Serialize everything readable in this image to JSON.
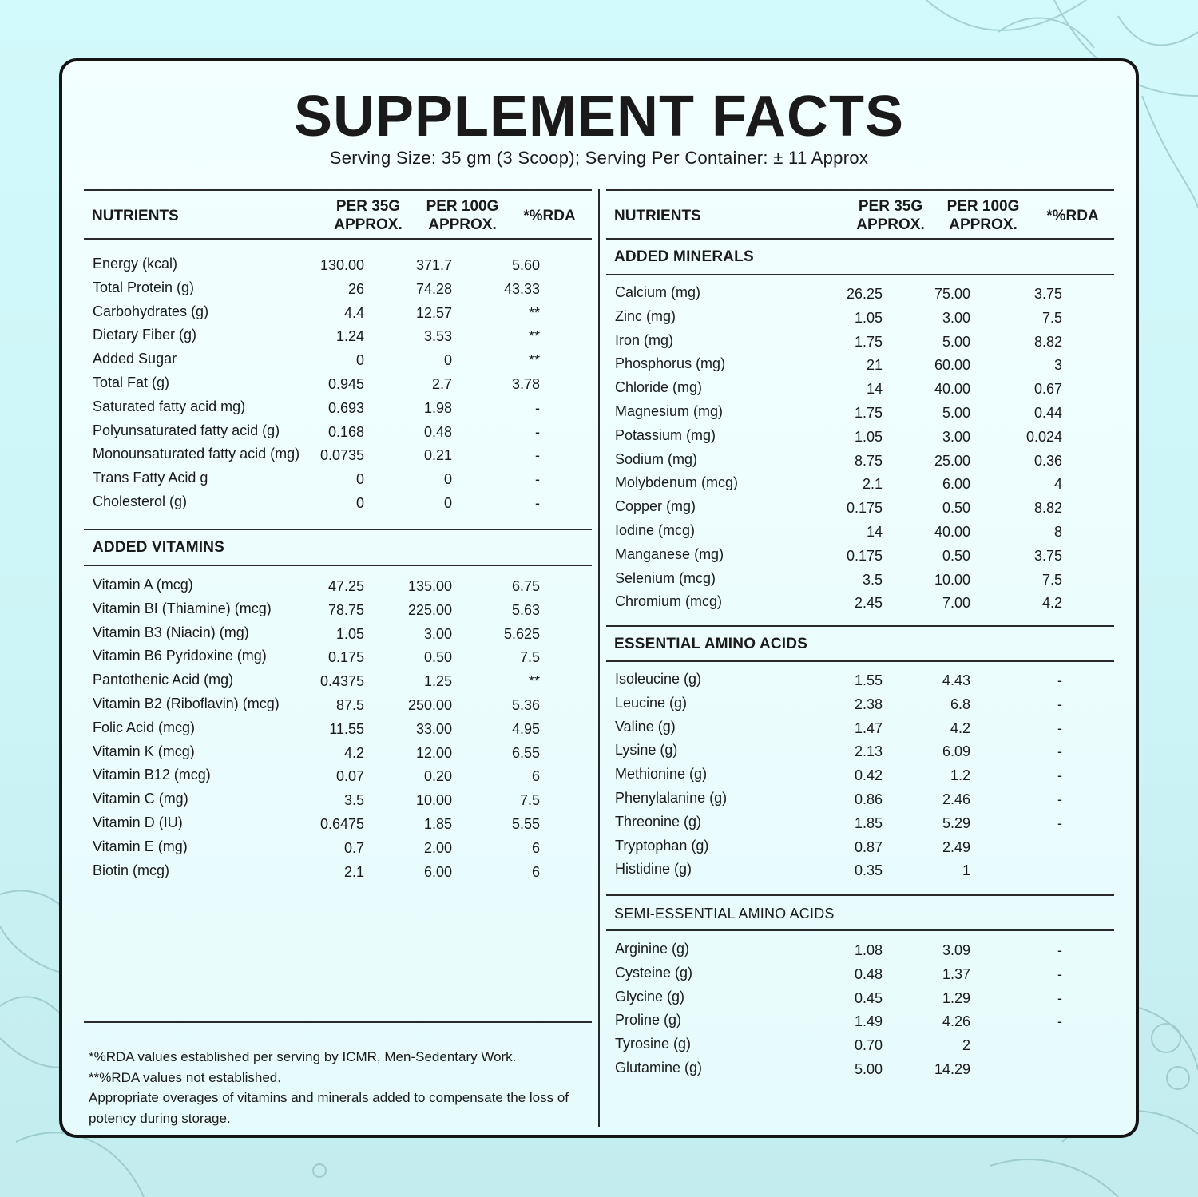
{
  "title": "SUPPLEMENT FACTS",
  "subtitle": "Serving Size: 35 gm (3 Scoop); Serving Per Container: ± 11 Approx",
  "headers": {
    "nutrients": "NUTRIENTS",
    "per35_line1": "PER 35G",
    "per35_line2": "APPROX.",
    "per100_line1": "PER 100G",
    "per100_line2": "APPROX.",
    "rda": "*%RDA"
  },
  "sections": {
    "vitamins": "ADDED VITAMINS",
    "minerals": "ADDED MINERALS",
    "essential": "ESSENTIAL AMINO ACIDS",
    "semi": "SEMI-ESSENTIAL AMINO ACIDS"
  },
  "nutrients": [
    {
      "name": "Energy (kcal)",
      "per35": "130.00",
      "per100": "371.7",
      "rda": "5.60"
    },
    {
      "name": "Total Protein (g)",
      "per35": "26",
      "per100": "74.28",
      "rda": "43.33"
    },
    {
      "name": "Carbohydrates (g)",
      "per35": "4.4",
      "per100": "12.57",
      "rda": "**"
    },
    {
      "name": "Dietary Fiber (g)",
      "per35": "1.24",
      "per100": "3.53",
      "rda": "**"
    },
    {
      "name": "Added Sugar",
      "per35": "0",
      "per100": "0",
      "rda": "**"
    },
    {
      "name": "Total Fat (g)",
      "per35": "0.945",
      "per100": "2.7",
      "rda": "3.78"
    },
    {
      "name": "Saturated fatty acid mg)",
      "per35": "0.693",
      "per100": "1.98",
      "rda": "-"
    },
    {
      "name": "Polyunsaturated fatty acid (g)",
      "per35": "0.168",
      "per100": "0.48",
      "rda": "-"
    },
    {
      "name": "Monounsaturated fatty acid (mg)",
      "per35": "0.0735",
      "per100": "0.21",
      "rda": "-"
    },
    {
      "name": "Trans Fatty Acid g",
      "per35": "0",
      "per100": "0",
      "rda": "-"
    },
    {
      "name": "Cholesterol (g)",
      "per35": "0",
      "per100": "0",
      "rda": "-"
    }
  ],
  "vitamins": [
    {
      "name": "Vitamin A (mcg)",
      "per35": "47.25",
      "per100": "135.00",
      "rda": "6.75"
    },
    {
      "name": "Vitamin BI (Thiamine) (mcg)",
      "per35": "78.75",
      "per100": "225.00",
      "rda": "5.63"
    },
    {
      "name": "Vitamin B3 (Niacin) (mg)",
      "per35": "1.05",
      "per100": "3.00",
      "rda": "5.625"
    },
    {
      "name": "Vitamin B6 Pyridoxine (mg)",
      "per35": "0.175",
      "per100": "0.50",
      "rda": "7.5"
    },
    {
      "name": "Pantothenic Acid (mg)",
      "per35": "0.4375",
      "per100": "1.25",
      "rda": "**"
    },
    {
      "name": "Vitamin B2 (Riboflavin) (mcg)",
      "per35": "87.5",
      "per100": "250.00",
      "rda": "5.36"
    },
    {
      "name": "Folic Acid (mcg)",
      "per35": "11.55",
      "per100": "33.00",
      "rda": "4.95"
    },
    {
      "name": "Vitamin K (mcg)",
      "per35": "4.2",
      "per100": "12.00",
      "rda": "6.55"
    },
    {
      "name": "Vitamin B12 (mcg)",
      "per35": "0.07",
      "per100": "0.20",
      "rda": "6"
    },
    {
      "name": "Vitamin C (mg)",
      "per35": "3.5",
      "per100": "10.00",
      "rda": "7.5"
    },
    {
      "name": "Vitamin D (IU)",
      "per35": "0.6475",
      "per100": "1.85",
      "rda": "5.55"
    },
    {
      "name": "Vitamin E (mg)",
      "per35": "0.7",
      "per100": "2.00",
      "rda": "6"
    },
    {
      "name": "Biotin (mcg)",
      "per35": "2.1",
      "per100": "6.00",
      "rda": "6"
    }
  ],
  "minerals": [
    {
      "name": "Calcium (mg)",
      "per35": "26.25",
      "per100": "75.00",
      "rda": "3.75"
    },
    {
      "name": "Zinc (mg)",
      "per35": "1.05",
      "per100": "3.00",
      "rda": "7.5"
    },
    {
      "name": "Iron (mg)",
      "per35": "1.75",
      "per100": "5.00",
      "rda": "8.82"
    },
    {
      "name": "Phosphorus (mg)",
      "per35": "21",
      "per100": "60.00",
      "rda": "3"
    },
    {
      "name": "Chloride (mg)",
      "per35": "14",
      "per100": "40.00",
      "rda": "0.67"
    },
    {
      "name": "Magnesium (mg)",
      "per35": "1.75",
      "per100": "5.00",
      "rda": "0.44"
    },
    {
      "name": "Potassium (mg)",
      "per35": "1.05",
      "per100": "3.00",
      "rda": "0.024"
    },
    {
      "name": "Sodium (mg)",
      "per35": "8.75",
      "per100": "25.00",
      "rda": "0.36"
    },
    {
      "name": "Molybdenum (mcg)",
      "per35": "2.1",
      "per100": "6.00",
      "rda": "4"
    },
    {
      "name": "Copper (mg)",
      "per35": "0.175",
      "per100": "0.50",
      "rda": "8.82"
    },
    {
      "name": "Iodine (mcg)",
      "per35": "14",
      "per100": "40.00",
      "rda": "8"
    },
    {
      "name": "Manganese (mg)",
      "per35": "0.175",
      "per100": "0.50",
      "rda": "3.75"
    },
    {
      "name": "Selenium (mcg)",
      "per35": "3.5",
      "per100": "10.00",
      "rda": "7.5"
    },
    {
      "name": "Chromium (mcg)",
      "per35": "2.45",
      "per100": "7.00",
      "rda": "4.2"
    }
  ],
  "essential_amino": [
    {
      "name": "Isoleucine (g)",
      "per35": "1.55",
      "per100": "4.43",
      "rda": "-"
    },
    {
      "name": "Leucine (g)",
      "per35": "2.38",
      "per100": "6.8",
      "rda": "-"
    },
    {
      "name": "Valine (g)",
      "per35": "1.47",
      "per100": "4.2",
      "rda": "-"
    },
    {
      "name": "Lysine (g)",
      "per35": "2.13",
      "per100": "6.09",
      "rda": "-"
    },
    {
      "name": "Methionine (g)",
      "per35": "0.42",
      "per100": "1.2",
      "rda": "-"
    },
    {
      "name": "Phenylalanine (g)",
      "per35": "0.86",
      "per100": "2.46",
      "rda": "-"
    },
    {
      "name": "Threonine (g)",
      "per35": "1.85",
      "per100": "5.29",
      "rda": "-"
    },
    {
      "name": "Tryptophan (g)",
      "per35": "0.87",
      "per100": "2.49",
      "rda": ""
    },
    {
      "name": "Histidine (g)",
      "per35": "0.35",
      "per100": "1",
      "rda": ""
    }
  ],
  "semi_amino": [
    {
      "name": "Arginine (g)",
      "per35": "1.08",
      "per100": "3.09",
      "rda": "-"
    },
    {
      "name": "Cysteine (g)",
      "per35": "0.48",
      "per100": "1.37",
      "rda": "-"
    },
    {
      "name": "Glycine (g)",
      "per35": "0.45",
      "per100": "1.29",
      "rda": "-"
    },
    {
      "name": "Proline (g)",
      "per35": "1.49",
      "per100": "4.26",
      "rda": "-"
    },
    {
      "name": "Tyrosine (g)",
      "per35": "0.70",
      "per100": "2",
      "rda": ""
    },
    {
      "name": "Glutamine (g)",
      "per35": "5.00",
      "per100": "14.29",
      "rda": ""
    }
  ],
  "footnotes": [
    "*%RDA values established per serving by ICMR, Men-Sedentary Work.",
    "**%RDA values not established.",
    "Appropriate overages of vitamins and minerals added to compensate the loss of potency during storage."
  ],
  "colors": {
    "background": "#d2f9fb",
    "card": "#f0ffff",
    "ink": "#1a1a1a",
    "decor": "#6aa8aa"
  }
}
